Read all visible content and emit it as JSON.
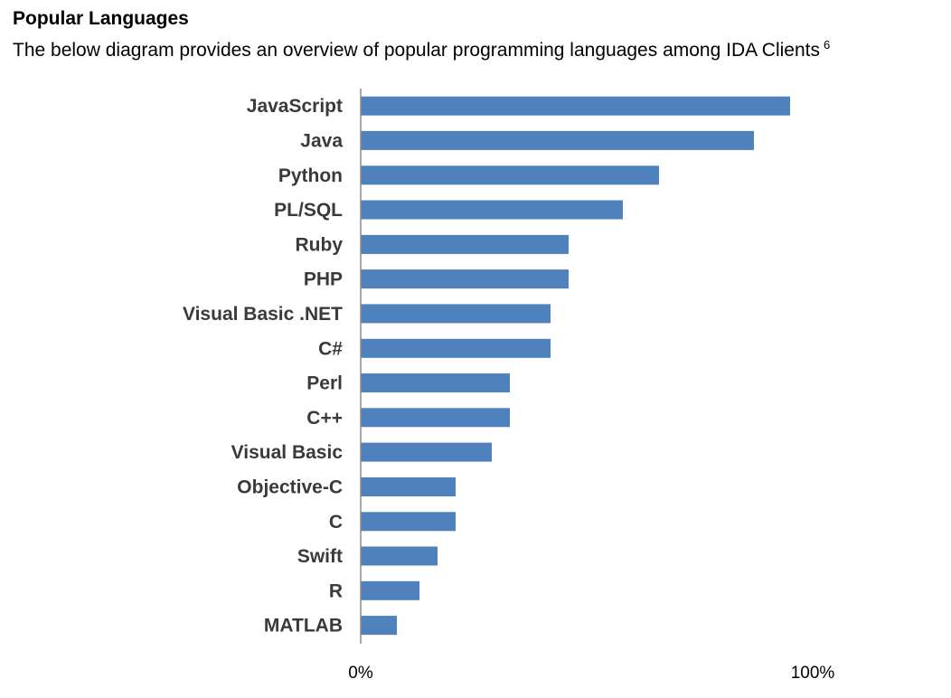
{
  "header": {
    "title": "Popular Languages",
    "subtitle": "The below diagram provides an overview of popular programming languages among IDA Clients",
    "footnote": "6"
  },
  "chart_data": {
    "type": "bar",
    "orientation": "horizontal",
    "categories": [
      "JavaScript",
      "Java",
      "Python",
      "PL/SQL",
      "Ruby",
      "PHP",
      "Visual Basic .NET",
      "C#",
      "Perl",
      "C++",
      "Visual Basic",
      "Objective-C",
      "C",
      "Swift",
      "R",
      "MATLAB"
    ],
    "values": [
      95,
      87,
      66,
      58,
      46,
      46,
      42,
      42,
      33,
      33,
      29,
      21,
      21,
      17,
      13,
      8
    ],
    "xlim": [
      0,
      100
    ],
    "x_ticks": [
      "0%",
      "100%"
    ],
    "bar_color": "#4f81bd",
    "grid": false,
    "legend": "none"
  }
}
